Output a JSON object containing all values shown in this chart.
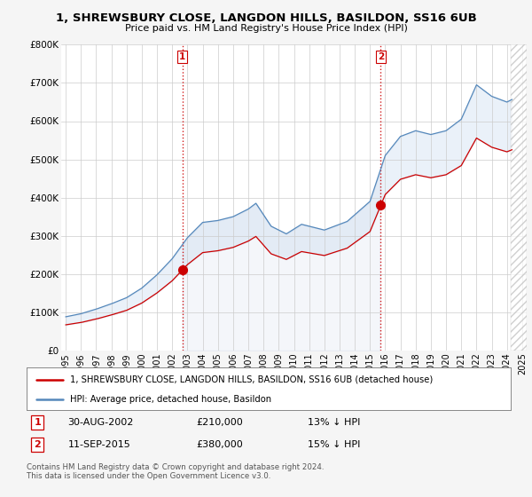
{
  "title1": "1, SHREWSBURY CLOSE, LANGDON HILLS, BASILDON, SS16 6UB",
  "title2": "Price paid vs. HM Land Registry's House Price Index (HPI)",
  "legend_line1": "1, SHREWSBURY CLOSE, LANGDON HILLS, BASILDON, SS16 6UB (detached house)",
  "legend_line2": "HPI: Average price, detached house, Basildon",
  "footnote": "Contains HM Land Registry data © Crown copyright and database right 2024.\nThis data is licensed under the Open Government Licence v3.0.",
  "transaction1": {
    "label": "1",
    "date": "30-AUG-2002",
    "price": "£210,000",
    "hpi_rel": "13% ↓ HPI"
  },
  "transaction2": {
    "label": "2",
    "date": "11-SEP-2015",
    "price": "£380,000",
    "hpi_rel": "15% ↓ HPI"
  },
  "sale_color": "#cc0000",
  "hpi_color": "#5588bb",
  "fill_color": "#c5d8ee",
  "vline_color": "#cc0000",
  "background_color": "#f5f5f5",
  "plot_bg": "#ffffff",
  "grid_color": "#cccccc",
  "ylim": [
    0,
    800000
  ],
  "yticks": [
    0,
    100000,
    200000,
    300000,
    400000,
    500000,
    600000,
    700000,
    800000
  ],
  "ytick_labels": [
    "£0",
    "£100K",
    "£200K",
    "£300K",
    "£400K",
    "£500K",
    "£600K",
    "£700K",
    "£800K"
  ],
  "sale1_x": 2002.66,
  "sale1_y": 210000,
  "sale2_x": 2015.71,
  "sale2_y": 380000,
  "xlim_left": 1994.7,
  "xlim_right": 2025.3
}
